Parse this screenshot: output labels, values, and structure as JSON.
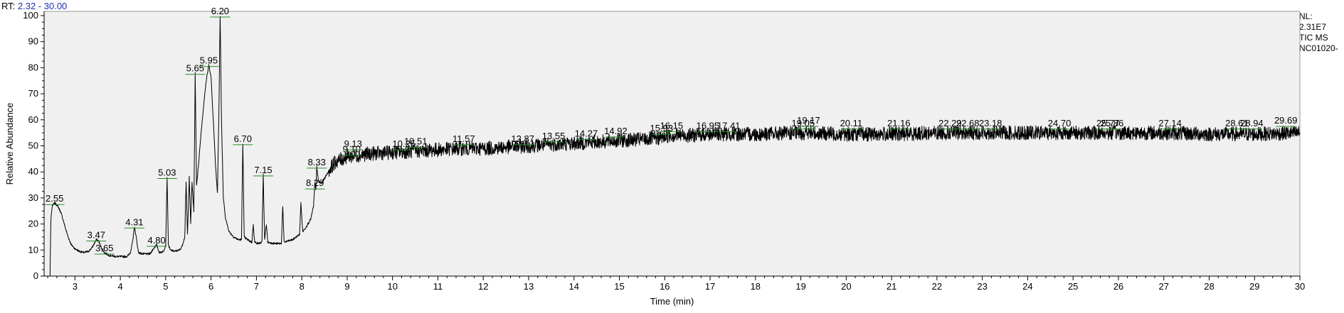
{
  "header": {
    "rt_label": "RT:",
    "rt_range": "2.32 - 30.00"
  },
  "info": {
    "nl_label": "NL:",
    "nl_value": "2.31E7",
    "scan_type": "TIC  MS",
    "sample": "NC01020-"
  },
  "chart_data": {
    "type": "line",
    "title": "",
    "xlabel": "Time (min)",
    "ylabel": "Relative Abundance",
    "xlim": [
      2.32,
      30.0
    ],
    "ylim": [
      0,
      100
    ],
    "x_ticks": [
      3,
      4,
      5,
      6,
      7,
      8,
      9,
      10,
      11,
      12,
      13,
      14,
      15,
      16,
      17,
      18,
      19,
      20,
      21,
      22,
      23,
      24,
      25,
      26,
      27,
      28,
      29,
      30
    ],
    "y_ticks": [
      0,
      10,
      20,
      30,
      40,
      50,
      60,
      70,
      80,
      90,
      100
    ],
    "grid": false,
    "series": [
      {
        "color": "#000000",
        "points": [
          [
            2.32,
            0
          ],
          [
            2.45,
            0
          ],
          [
            2.47,
            22
          ],
          [
            2.5,
            27
          ],
          [
            2.55,
            28
          ],
          [
            2.62,
            27
          ],
          [
            2.7,
            24
          ],
          [
            2.78,
            19
          ],
          [
            2.85,
            15
          ],
          [
            2.92,
            12
          ],
          [
            3.0,
            10.5
          ],
          [
            3.1,
            9.5
          ],
          [
            3.2,
            9
          ],
          [
            3.3,
            9.5
          ],
          [
            3.38,
            11
          ],
          [
            3.44,
            13
          ],
          [
            3.47,
            14
          ],
          [
            3.52,
            13.5
          ],
          [
            3.58,
            11
          ],
          [
            3.65,
            9
          ],
          [
            3.75,
            8
          ],
          [
            3.9,
            7.5
          ],
          [
            4.05,
            7.5
          ],
          [
            4.15,
            7.5
          ],
          [
            4.22,
            9
          ],
          [
            4.28,
            14
          ],
          [
            4.31,
            19
          ],
          [
            4.35,
            15
          ],
          [
            4.4,
            9
          ],
          [
            4.5,
            8.5
          ],
          [
            4.65,
            8.5
          ],
          [
            4.75,
            11
          ],
          [
            4.8,
            12
          ],
          [
            4.86,
            9
          ],
          [
            4.95,
            9.5
          ],
          [
            5.0,
            12
          ],
          [
            5.03,
            38
          ],
          [
            5.06,
            12
          ],
          [
            5.1,
            10
          ],
          [
            5.2,
            9.5
          ],
          [
            5.3,
            10
          ],
          [
            5.35,
            11
          ],
          [
            5.42,
            15
          ],
          [
            5.45,
            36
          ],
          [
            5.48,
            16
          ],
          [
            5.52,
            38
          ],
          [
            5.55,
            20
          ],
          [
            5.58,
            36
          ],
          [
            5.62,
            25
          ],
          [
            5.65,
            78
          ],
          [
            5.68,
            35
          ],
          [
            5.72,
            42
          ],
          [
            5.78,
            55
          ],
          [
            5.85,
            68
          ],
          [
            5.9,
            76
          ],
          [
            5.95,
            81
          ],
          [
            6.0,
            76
          ],
          [
            6.05,
            60
          ],
          [
            6.1,
            42
          ],
          [
            6.14,
            32
          ],
          [
            6.17,
            60
          ],
          [
            6.2,
            100
          ],
          [
            6.23,
            60
          ],
          [
            6.27,
            30
          ],
          [
            6.32,
            22
          ],
          [
            6.4,
            17
          ],
          [
            6.5,
            15
          ],
          [
            6.6,
            14
          ],
          [
            6.67,
            14
          ],
          [
            6.7,
            51
          ],
          [
            6.73,
            15
          ],
          [
            6.8,
            14
          ],
          [
            6.9,
            13
          ],
          [
            6.93,
            20
          ],
          [
            6.96,
            13
          ],
          [
            7.05,
            12.5
          ],
          [
            7.12,
            13
          ],
          [
            7.15,
            39
          ],
          [
            7.18,
            14
          ],
          [
            7.22,
            20
          ],
          [
            7.25,
            13
          ],
          [
            7.4,
            12.5
          ],
          [
            7.55,
            12.5
          ],
          [
            7.58,
            27
          ],
          [
            7.61,
            13
          ],
          [
            7.8,
            14
          ],
          [
            7.95,
            16
          ],
          [
            7.98,
            28
          ],
          [
            8.02,
            17
          ],
          [
            8.1,
            19
          ],
          [
            8.2,
            22
          ],
          [
            8.26,
            27
          ],
          [
            8.29,
            36
          ],
          [
            8.31,
            33
          ],
          [
            8.33,
            42
          ],
          [
            8.37,
            36
          ],
          [
            8.45,
            36
          ],
          [
            8.55,
            39
          ],
          [
            8.65,
            42
          ],
          [
            8.75,
            44
          ],
          [
            8.9,
            45
          ],
          [
            9.0,
            46
          ],
          [
            9.1,
            46
          ],
          [
            9.3,
            46.5
          ],
          [
            9.5,
            47
          ],
          [
            10.0,
            47.5
          ],
          [
            10.5,
            48
          ],
          [
            11.0,
            48.5
          ],
          [
            11.5,
            49
          ],
          [
            12.0,
            49
          ],
          [
            12.5,
            49.5
          ],
          [
            13.0,
            50
          ],
          [
            13.5,
            50.5
          ],
          [
            14.0,
            51
          ],
          [
            14.5,
            51.5
          ],
          [
            15.0,
            52
          ],
          [
            15.5,
            52.5
          ],
          [
            15.9,
            53
          ],
          [
            16.1,
            54
          ],
          [
            16.5,
            54
          ],
          [
            17.0,
            54.5
          ],
          [
            18.0,
            54.5
          ],
          [
            19.0,
            55
          ],
          [
            20.0,
            54.5
          ],
          [
            21.0,
            54.5
          ],
          [
            22.0,
            55
          ],
          [
            23.0,
            55
          ],
          [
            24.0,
            55
          ],
          [
            25.0,
            55
          ],
          [
            26.0,
            55
          ],
          [
            27.0,
            55
          ],
          [
            28.0,
            54.5
          ],
          [
            29.0,
            54.5
          ],
          [
            30.0,
            55
          ]
        ]
      }
    ],
    "peak_labels": [
      {
        "x": 2.55,
        "label": "2.55",
        "y": 28
      },
      {
        "x": 3.47,
        "label": "3.47",
        "y": 14
      },
      {
        "x": 3.65,
        "label": "3.65",
        "y": 9
      },
      {
        "x": 4.31,
        "label": "4.31",
        "y": 19
      },
      {
        "x": 4.8,
        "label": "4.80",
        "y": 12
      },
      {
        "x": 5.03,
        "label": "5.03",
        "y": 38
      },
      {
        "x": 5.65,
        "label": "5.65",
        "y": 78
      },
      {
        "x": 5.95,
        "label": "5.95",
        "y": 81
      },
      {
        "x": 6.2,
        "label": "6.20",
        "y": 100
      },
      {
        "x": 6.7,
        "label": "6.70",
        "y": 51
      },
      {
        "x": 7.15,
        "label": "7.15",
        "y": 39
      },
      {
        "x": 8.29,
        "label": "8.29",
        "y": 34
      },
      {
        "x": 8.33,
        "label": "8.33",
        "y": 42
      },
      {
        "x": 9.1,
        "label": "9.10",
        "y": 47
      },
      {
        "x": 9.13,
        "label": "9.13",
        "y": 49
      },
      {
        "x": 10.25,
        "label": "10.25",
        "y": 49
      },
      {
        "x": 10.51,
        "label": "10.51",
        "y": 50
      },
      {
        "x": 11.57,
        "label": "11.57",
        "y": 51
      },
      {
        "x": 12.87,
        "label": "12.87",
        "y": 51
      },
      {
        "x": 13.55,
        "label": "13.55",
        "y": 52
      },
      {
        "x": 14.27,
        "label": "14.27",
        "y": 53
      },
      {
        "x": 14.92,
        "label": "14.92",
        "y": 54
      },
      {
        "x": 15.93,
        "label": "15.93",
        "y": 55
      },
      {
        "x": 16.15,
        "label": "16.15",
        "y": 56
      },
      {
        "x": 16.95,
        "label": "16.95",
        "y": 56
      },
      {
        "x": 17.41,
        "label": "17.41",
        "y": 56
      },
      {
        "x": 19.05,
        "label": "19.05",
        "y": 57
      },
      {
        "x": 19.17,
        "label": "19.17",
        "y": 58
      },
      {
        "x": 20.11,
        "label": "20.11",
        "y": 57
      },
      {
        "x": 21.16,
        "label": "21.16",
        "y": 57
      },
      {
        "x": 22.29,
        "label": "22.29",
        "y": 57
      },
      {
        "x": 22.68,
        "label": "22.68",
        "y": 57
      },
      {
        "x": 23.18,
        "label": "23.18",
        "y": 57
      },
      {
        "x": 24.7,
        "label": "24.70",
        "y": 57
      },
      {
        "x": 25.77,
        "label": "25.77",
        "y": 57
      },
      {
        "x": 25.86,
        "label": "25.86",
        "y": 57
      },
      {
        "x": 27.14,
        "label": "27.14",
        "y": 57
      },
      {
        "x": 28.61,
        "label": "28.61",
        "y": 57
      },
      {
        "x": 28.94,
        "label": "28.94",
        "y": 57
      },
      {
        "x": 29.69,
        "label": "29.69",
        "y": 58
      }
    ],
    "colors": {
      "plot_background": "#f0f0f0",
      "trace": "#000000",
      "label_marker": "#2a8a2a",
      "rt_value": "#1f2fa8"
    }
  }
}
